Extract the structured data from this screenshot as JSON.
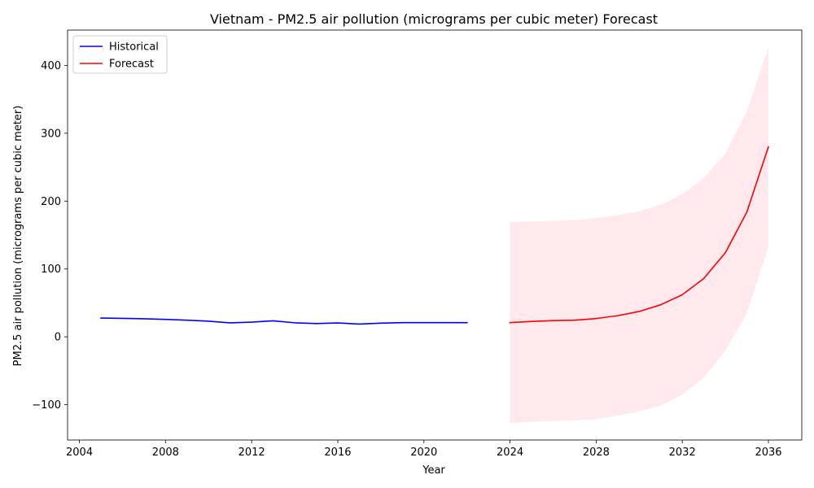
{
  "chart_data": {
    "type": "line",
    "title": "Vietnam - PM2.5 air pollution (micrograms per cubic meter) Forecast",
    "xlabel": "Year",
    "ylabel": "PM2.5 air pollution (micrograms per cubic meter)",
    "xlim": [
      2003.45,
      2037.55
    ],
    "ylim": [
      -152,
      452
    ],
    "xticks": [
      2004,
      2008,
      2012,
      2016,
      2020,
      2024,
      2028,
      2032,
      2036
    ],
    "yticks": [
      -100,
      0,
      100,
      200,
      300,
      400
    ],
    "grid": false,
    "legend_position": "top-left",
    "series": [
      {
        "name": "Historical",
        "color": "#0000ff",
        "x": [
          2005,
          2006,
          2007,
          2008,
          2009,
          2010,
          2011,
          2012,
          2013,
          2014,
          2015,
          2016,
          2017,
          2018,
          2019,
          2020,
          2021,
          2022
        ],
        "y": [
          27.7,
          27.3,
          26.7,
          25.7,
          24.5,
          23.1,
          20.6,
          21.7,
          23.6,
          20.7,
          19.6,
          20.5,
          18.8,
          20.2,
          20.9,
          20.9,
          20.9,
          20.9
        ]
      },
      {
        "name": "Forecast",
        "color": "#ff0000",
        "x": [
          2024,
          2025,
          2026,
          2027,
          2028,
          2029,
          2030,
          2031,
          2032,
          2033,
          2034,
          2035,
          2036
        ],
        "y": [
          21.0,
          22.8,
          23.9,
          24.6,
          27.0,
          31.2,
          37.4,
          47.3,
          62.1,
          86.0,
          124.0,
          184.0,
          280.0
        ]
      }
    ],
    "confidence_band": {
      "color": "#ffc0cb",
      "x": [
        2024,
        2025,
        2026,
        2027,
        2028,
        2029,
        2030,
        2031,
        2032,
        2033,
        2034,
        2035,
        2036
      ],
      "lower": [
        -127,
        -125,
        -124,
        -123,
        -121,
        -116,
        -110,
        -101,
        -85,
        -60,
        -20,
        35,
        133
      ],
      "upper": [
        169,
        170,
        171,
        172,
        175,
        179,
        185,
        195,
        210,
        234,
        270,
        332,
        427
      ]
    }
  }
}
